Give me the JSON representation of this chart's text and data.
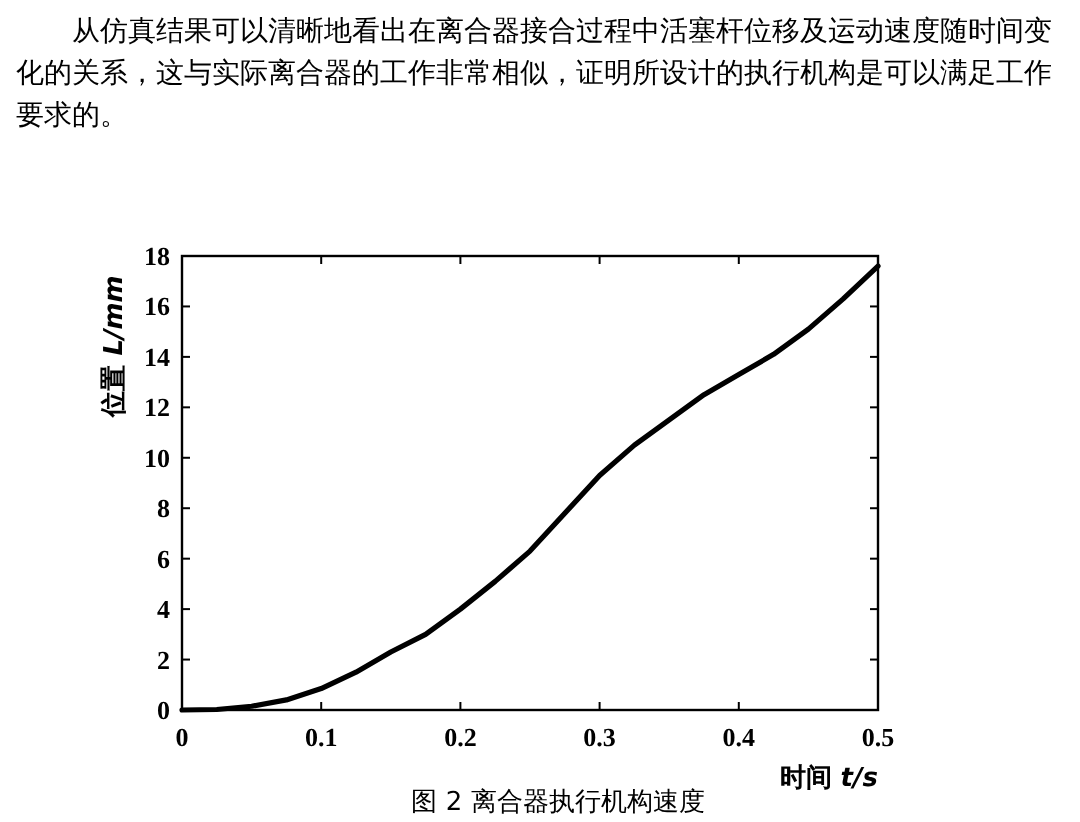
{
  "chart_data": {
    "type": "line",
    "title": "图 2 离合器执行机构速度",
    "annotations": [
      "从仿真结果可以清晰地看出在离合器接合过程中活塞杆位移及运动速度随时间变化的关系，这与实际离合器的工作非常相似，证明所设计的执行机构是可以满足工作要求的。"
    ],
    "xlabel": "时间 *t/s*",
    "ylabel": "位置 *L/mm*",
    "x": [
      0,
      0.025,
      0.05,
      0.075,
      0.1,
      0.125,
      0.15,
      0.175,
      0.2,
      0.225,
      0.25,
      0.275,
      0.3,
      0.325,
      0.35,
      0.375,
      0.4,
      0.425,
      0.45,
      0.475,
      0.5
    ],
    "series": [
      {
        "color": "#000000",
        "values": [
          0,
          0.02,
          0.15,
          0.4,
          0.85,
          1.5,
          2.3,
          3.0,
          4.0,
          5.1,
          6.3,
          7.8,
          9.3,
          10.5,
          11.5,
          12.5,
          13.3,
          14.1,
          15.1,
          16.3,
          17.6
        ]
      }
    ],
    "xlim": [
      0,
      0.5
    ],
    "ylim": [
      0,
      18
    ],
    "xticks": [
      0,
      0.1,
      0.2,
      0.3,
      0.4,
      0.5
    ],
    "yticks": [
      0,
      2,
      4,
      6,
      8,
      10,
      12,
      14,
      16,
      18
    ],
    "grid": false,
    "marker": "none",
    "line_style": "solid"
  }
}
